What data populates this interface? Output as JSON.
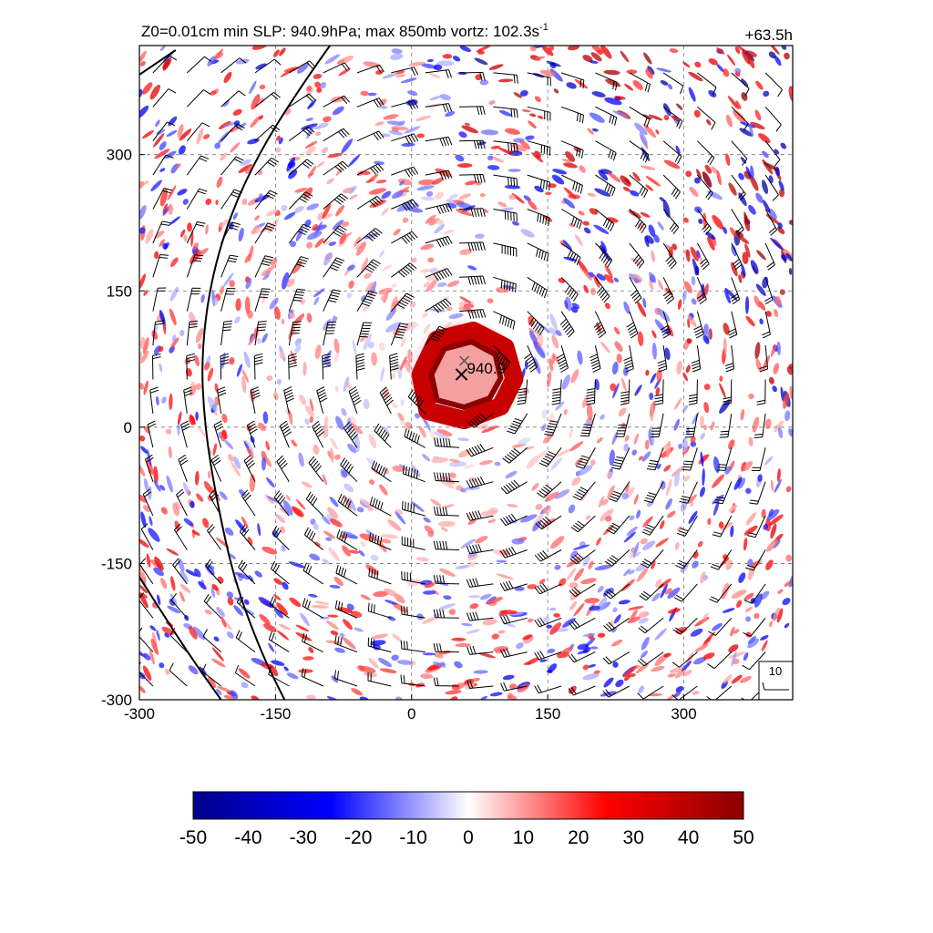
{
  "chart_data": {
    "type": "heatmap",
    "title_left_main": "Z0=0.01cm  min SLP: 940.9hPa; max 850mb vortz: 102.3s",
    "title_left_sup": "-1",
    "title_right": "+63.5h",
    "xlim": [
      -300,
      420
    ],
    "ylim": [
      -300,
      420
    ],
    "x_ticks": [
      -300,
      -150,
      0,
      150,
      300
    ],
    "y_ticks": [
      -300,
      -150,
      0,
      150,
      300
    ],
    "x_tick_labels": [
      "-300",
      "-150",
      "0",
      "150",
      "300"
    ],
    "y_tick_labels": [
      "-300",
      "-150",
      "0",
      "150",
      "300"
    ],
    "grid": true,
    "colorbar": {
      "range": [
        -50,
        50
      ],
      "ticks": [
        -50,
        -40,
        -30,
        -20,
        -10,
        0,
        10,
        20,
        30,
        40,
        50
      ],
      "tick_labels": [
        "-50",
        "-40",
        "-30",
        "-20",
        "-10",
        "0",
        "10",
        "20",
        "30",
        "40",
        "50"
      ],
      "colors": [
        "#00008b",
        "#0000ff",
        "#ffffff",
        "#ff0000",
        "#8b0000"
      ]
    },
    "center": {
      "x": 58,
      "y": 58,
      "min_slp_label": "940.9",
      "min_slp": 940.9,
      "max_vorticity": 102.3
    },
    "wind_scale_label": "10",
    "contour_lines": [
      {
        "points": [
          [
            -300,
            388
          ],
          [
            -260,
            415
          ]
        ]
      },
      {
        "points": [
          [
            -90,
            420
          ],
          [
            -140,
            350
          ],
          [
            -190,
            260
          ],
          [
            -220,
            170
          ],
          [
            -232,
            80
          ],
          [
            -228,
            0
          ],
          [
            -215,
            -80
          ],
          [
            -195,
            -170
          ],
          [
            -165,
            -250
          ],
          [
            -140,
            -300
          ]
        ]
      },
      {
        "points": [
          [
            -300,
            -165
          ],
          [
            -265,
            -220
          ],
          [
            -235,
            -265
          ],
          [
            -210,
            -300
          ]
        ]
      }
    ]
  }
}
